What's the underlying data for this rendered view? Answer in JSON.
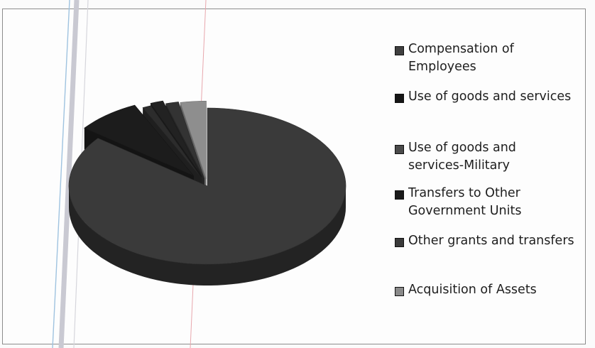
{
  "chart_data": {
    "type": "pie",
    "style": "3d-exploded",
    "categories": [
      "Compensation of Employees",
      "Use of goods and services",
      "Use of goods and services-Military",
      "Transfers to Other Government Units",
      "Other grants and transfers",
      "Acquisition of Assets"
    ],
    "values": [
      85.5,
      7.5,
      1.0,
      1.5,
      1.5,
      3.0
    ],
    "value_unit": "percent (estimated)",
    "colors": [
      "#3a3a3a",
      "#1c1c1c",
      "#2c2c2c",
      "#222222",
      "#333333",
      "#8e8e8e"
    ],
    "legend_position": "right",
    "title": "",
    "show_data_labels": false
  },
  "legend": {
    "items": [
      {
        "label": "Compensation of Employees",
        "color": "#3f3f3f"
      },
      {
        "label": "Use of goods and services",
        "color": "#161616"
      },
      {
        "label": "Use of goods and services-Military",
        "color": "#4a4a4a"
      },
      {
        "label": "Transfers to Other Government Units",
        "color": "#1a1a1a"
      },
      {
        "label": "Other grants and transfers",
        "color": "#3a3a3a"
      },
      {
        "label": "Acquisition of Assets",
        "color": "#8a8a8a"
      }
    ]
  }
}
